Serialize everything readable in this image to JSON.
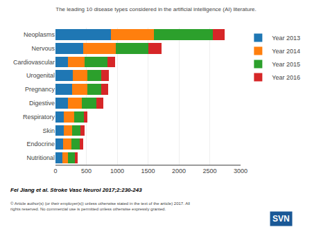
{
  "chart_data": {
    "type": "bar",
    "orientation": "horizontal",
    "stacked": true,
    "title": "The leading 10 disease types considered in the artificial intelligence (AI) literature.",
    "categories": [
      "Neoplasms",
      "Nervous",
      "Cardiovascular",
      "Urogenital",
      "Pregnancy",
      "Digestive",
      "Respiratory",
      "Skin",
      "Endocrine",
      "Nutritional"
    ],
    "series": [
      {
        "name": "Year 2013",
        "values": [
          900,
          450,
          200,
          280,
          270,
          200,
          140,
          130,
          120,
          110
        ]
      },
      {
        "name": "Year 2014",
        "values": [
          700,
          530,
          270,
          240,
          250,
          230,
          165,
          145,
          135,
          95
        ]
      },
      {
        "name": "Year 2015",
        "values": [
          950,
          530,
          370,
          220,
          220,
          230,
          155,
          135,
          135,
          105
        ]
      },
      {
        "name": "Year 2016",
        "values": [
          195,
          205,
          125,
          125,
          115,
          115,
          55,
          60,
          55,
          55
        ]
      }
    ],
    "xlim": [
      0,
      3000
    ],
    "xticks": [
      0,
      500,
      1000,
      1500,
      2000,
      2500,
      3000
    ],
    "grid": true,
    "legend": "right",
    "annotations": [
      "Fei Jiang et al. Stroke Vasc Neurol 2017;2:230-243",
      "© Article author(s) (or their employer(s)) unless otherwise stated in the text of the article) 2017. All\nrights reserved. No commercial use is permitted unless otherwise expressly granted.",
      "SVN"
    ]
  }
}
